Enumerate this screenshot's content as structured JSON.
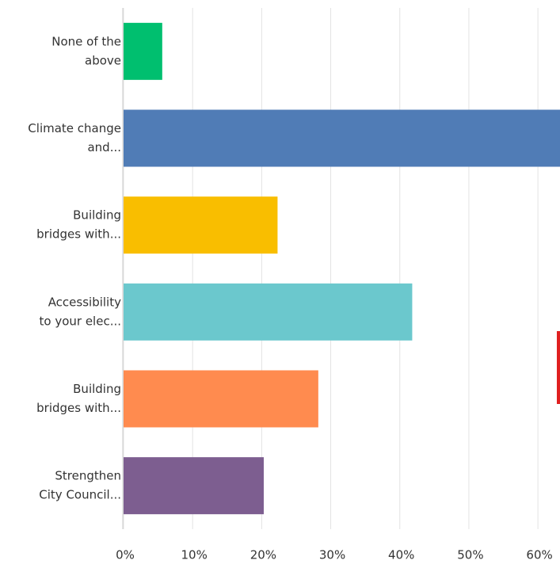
{
  "chart_data": {
    "type": "barh",
    "categories": [
      [
        "None of the",
        "above"
      ],
      [
        "Climate change",
        "and..."
      ],
      [
        "Building",
        "bridges with..."
      ],
      [
        "Accessibility",
        "to your elec..."
      ],
      [
        "Building",
        "bridges with..."
      ],
      [
        "Strengthen",
        "City Council..."
      ]
    ],
    "values": [
      5.6,
      65,
      22.3,
      41.8,
      28.2,
      20.3
    ],
    "colors": [
      "#00bf6f",
      "#507cb6",
      "#f9be00",
      "#6bc8cd",
      "#ff8b4f",
      "#7d5e90"
    ],
    "xlim": [
      0,
      63.2
    ],
    "xticks": [
      {
        "value": 0,
        "label": "0%"
      },
      {
        "value": 10,
        "label": "10%"
      },
      {
        "value": 20,
        "label": "20%"
      },
      {
        "value": 30,
        "label": "30%"
      },
      {
        "value": 40,
        "label": "40%"
      },
      {
        "value": 50,
        "label": "50%"
      },
      {
        "value": 60,
        "label": "60%"
      }
    ],
    "grid": true
  }
}
